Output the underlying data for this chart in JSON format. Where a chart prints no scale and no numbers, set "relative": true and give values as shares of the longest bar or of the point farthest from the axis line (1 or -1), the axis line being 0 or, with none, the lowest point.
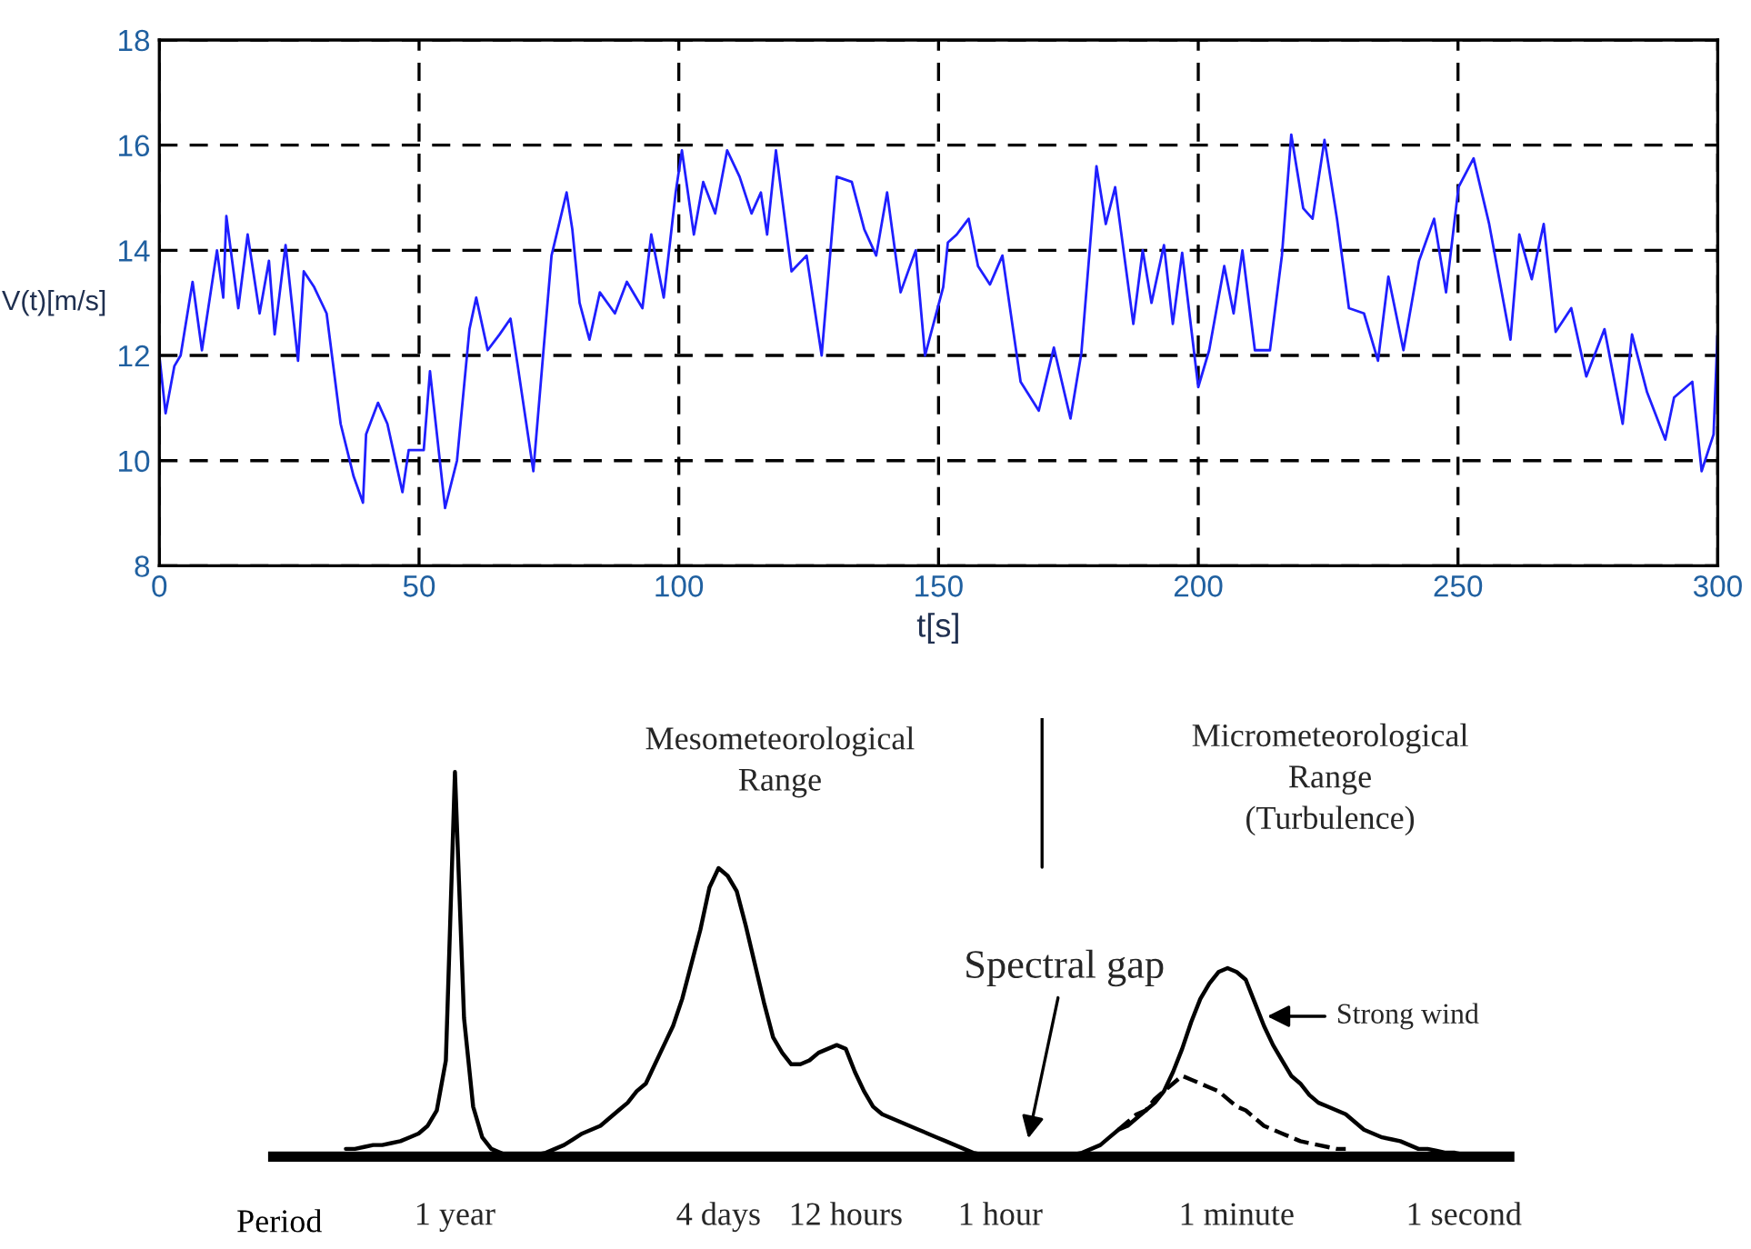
{
  "chart_data": [
    {
      "type": "line",
      "xlabel": "t[s]",
      "ylabel": "V(t)[m/s]",
      "xlim": [
        0,
        300
      ],
      "ylim": [
        8,
        18
      ],
      "xticks": [
        0,
        50,
        100,
        150,
        200,
        250,
        300
      ],
      "yticks": [
        8,
        10,
        12,
        14,
        16,
        18
      ],
      "grid": true,
      "line_style": "solid",
      "series": [
        {
          "color": "#1f1fff",
          "x": [
            0,
            1.2,
            2.9,
            4.1,
            6.4,
            8.2,
            11.1,
            12.3,
            12.9,
            15.2,
            17,
            19.3,
            21.1,
            22.2,
            24.3,
            26.7,
            27.8,
            29.8,
            32.2,
            34.9,
            37.4,
            39.2,
            39.8,
            42.1,
            43.9,
            46.8,
            48,
            50.9,
            52.1,
            55,
            57.3,
            59.7,
            61,
            63.2,
            65.5,
            67.6,
            69,
            72,
            73.7,
            75.5,
            78.4,
            79.5,
            80.9,
            82.8,
            84.8,
            87.7,
            90,
            93,
            94.7,
            97.1,
            99.4,
            100.6,
            102.9,
            104.7,
            107,
            109.3,
            111.7,
            114,
            115.8,
            117,
            118.7,
            121.7,
            124.6,
            127.5,
            130.4,
            133.3,
            135.7,
            138,
            140.1,
            142.7,
            145.6,
            147.4,
            150.9,
            151.8,
            153.5,
            155.8,
            157.6,
            159.9,
            162.3,
            165.8,
            169.3,
            172.2,
            175.4,
            177.5,
            180.4,
            182.2,
            184,
            187.5,
            189.3,
            191,
            193.4,
            195.1,
            196.9,
            200,
            202.1,
            205,
            206.8,
            208.5,
            210.9,
            213.8,
            216.1,
            217.9,
            220.2,
            222,
            224.3,
            226.7,
            229,
            231.9,
            234.6,
            236.6,
            239.5,
            242.5,
            245.4,
            247.7,
            250.1,
            253,
            256,
            260.1,
            261.8,
            264.2,
            266.5,
            268.8,
            271.8,
            274.7,
            278.2,
            281.7,
            283.5,
            286.4,
            289.9,
            291.6,
            295.1,
            296.9,
            299.2,
            300
          ],
          "values": [
            12.0,
            10.9,
            11.8,
            12.0,
            13.4,
            12.1,
            14.0,
            13.1,
            14.65,
            12.9,
            14.3,
            12.8,
            13.8,
            12.4,
            14.1,
            11.9,
            13.6,
            13.3,
            12.8,
            10.7,
            9.7,
            9.2,
            10.5,
            11.1,
            10.7,
            9.4,
            10.2,
            10.2,
            11.7,
            9.1,
            10.0,
            12.5,
            13.1,
            12.1,
            12.4,
            12.7,
            11.8,
            9.8,
            11.8,
            13.9,
            15.1,
            14.4,
            13.0,
            12.3,
            13.2,
            12.8,
            13.4,
            12.9,
            14.3,
            13.1,
            15.1,
            15.9,
            14.3,
            15.3,
            14.7,
            15.9,
            15.4,
            14.7,
            15.1,
            14.3,
            15.9,
            13.6,
            13.9,
            12.0,
            15.4,
            15.3,
            14.4,
            13.9,
            15.1,
            13.2,
            14.0,
            12.0,
            13.3,
            14.15,
            14.3,
            14.6,
            13.7,
            13.35,
            13.9,
            11.5,
            10.95,
            12.15,
            10.8,
            12.05,
            15.6,
            14.5,
            15.2,
            12.6,
            14.0,
            13.0,
            14.1,
            12.6,
            13.95,
            11.4,
            12.1,
            13.7,
            12.8,
            14.0,
            12.1,
            12.1,
            13.9,
            16.2,
            14.8,
            14.6,
            16.1,
            14.6,
            12.9,
            12.8,
            11.9,
            13.5,
            12.1,
            13.8,
            14.6,
            13.2,
            15.2,
            15.75,
            14.5,
            12.3,
            14.3,
            13.45,
            14.5,
            12.45,
            12.9,
            11.6,
            12.5,
            10.7,
            12.4,
            11.3,
            10.4,
            11.2,
            11.5,
            9.8,
            10.5,
            12.5
          ]
        }
      ]
    },
    {
      "type": "line",
      "relative": true,
      "xlabel": "Period",
      "categories": [
        null,
        null,
        null,
        null,
        null,
        null,
        null,
        null,
        null,
        null,
        null,
        null,
        null,
        null,
        null,
        null,
        null,
        null,
        null,
        null,
        "1 year",
        null,
        null,
        null,
        null,
        null,
        null,
        null,
        null,
        null,
        null,
        null,
        null,
        null,
        null,
        null,
        null,
        null,
        null,
        null,
        null,
        null,
        null,
        null,
        null,
        null,
        null,
        null,
        null,
        "4 days",
        null,
        null,
        null,
        null,
        null,
        null,
        null,
        null,
        null,
        null,
        null,
        null,
        null,
        "12 hours",
        null,
        null,
        null,
        null,
        null,
        null,
        null,
        null,
        null,
        null,
        null,
        null,
        null,
        null,
        null,
        null,
        "1 hour",
        null,
        null,
        null,
        null,
        null,
        null,
        null,
        null,
        null,
        null,
        null,
        null,
        null,
        null,
        null,
        null,
        null,
        null,
        null,
        null,
        null,
        null,
        null,
        null,
        null,
        "1 minute",
        null,
        null,
        null,
        null,
        null,
        null,
        null,
        null,
        null,
        null,
        null,
        null,
        null,
        null,
        null,
        null,
        null,
        null,
        null,
        null,
        null,
        null,
        null,
        null,
        "1 second",
        null,
        null,
        null,
        null,
        null
      ],
      "series": [
        {
          "color": "#000000",
          "line_style": "solid",
          "values": [
            null,
            null,
            null,
            null,
            null,
            null,
            null,
            null,
            0.02,
            0.02,
            0.025,
            0.03,
            0.03,
            0.035,
            0.04,
            0.05,
            0.06,
            0.08,
            0.12,
            0.25,
            1.0,
            0.36,
            0.13,
            0.05,
            0.02,
            0.01,
            0,
            0,
            0,
            0.005,
            0.01,
            0.02,
            0.03,
            0.045,
            0.06,
            0.07,
            0.08,
            0.1,
            0.12,
            0.14,
            0.17,
            0.19,
            0.24,
            0.29,
            0.34,
            0.41,
            0.5,
            0.59,
            0.7,
            0.75,
            0.73,
            0.69,
            0.6,
            0.5,
            0.4,
            0.31,
            0.27,
            0.24,
            0.24,
            0.25,
            0.27,
            0.28,
            0.29,
            0.28,
            0.22,
            0.17,
            0.13,
            0.11,
            0.1,
            0.09,
            0.08,
            0.07,
            0.06,
            0.05,
            0.04,
            0.03,
            0.02,
            0.01,
            0.005,
            0,
            0,
            0,
            0,
            0,
            0,
            0,
            0,
            0,
            0.005,
            0.01,
            0.02,
            0.03,
            0.05,
            0.07,
            0.08,
            0.1,
            0.12,
            0.14,
            0.17,
            0.22,
            0.28,
            0.35,
            0.41,
            0.45,
            0.48,
            0.49,
            0.48,
            0.46,
            0.4,
            0.34,
            0.29,
            0.25,
            0.21,
            0.19,
            0.16,
            0.14,
            0.13,
            0.12,
            0.11,
            0.09,
            0.07,
            0.06,
            0.05,
            0.045,
            0.04,
            0.03,
            0.02,
            0.02,
            0.015,
            0.01,
            0.01,
            0.005,
            0,
            null,
            null,
            null,
            null
          ]
        },
        {
          "color": "#000000",
          "line_style": "dashed",
          "values": [
            null,
            null,
            null,
            null,
            null,
            null,
            null,
            null,
            null,
            null,
            null,
            null,
            null,
            null,
            null,
            null,
            null,
            null,
            null,
            null,
            null,
            null,
            null,
            null,
            null,
            null,
            null,
            null,
            null,
            null,
            null,
            null,
            null,
            null,
            null,
            null,
            null,
            null,
            null,
            null,
            null,
            null,
            null,
            null,
            null,
            null,
            null,
            null,
            null,
            null,
            null,
            null,
            null,
            null,
            null,
            null,
            null,
            null,
            null,
            null,
            null,
            null,
            null,
            null,
            null,
            null,
            null,
            null,
            null,
            null,
            null,
            null,
            null,
            null,
            null,
            null,
            null,
            null,
            null,
            null,
            null,
            null,
            null,
            null,
            null,
            null,
            null,
            null,
            null,
            null,
            null,
            null,
            null,
            0.07,
            0.09,
            0.11,
            0.12,
            0.15,
            0.17,
            0.19,
            0.21,
            0.2,
            0.19,
            0.18,
            0.17,
            0.15,
            0.13,
            0.12,
            0.1,
            0.08,
            0.07,
            0.06,
            0.05,
            0.04,
            0.035,
            0.03,
            0.025,
            0.02,
            0.02,
            null,
            null,
            null,
            null,
            null,
            null,
            null,
            null,
            null,
            null,
            null,
            null,
            null,
            null,
            null,
            null,
            null,
            null
          ]
        }
      ],
      "annotations": [
        "Mesometeorological\nRange",
        "Micrometeorological\nRange\n(Turbulence)",
        "Spectral gap",
        "Strong wind"
      ]
    }
  ]
}
